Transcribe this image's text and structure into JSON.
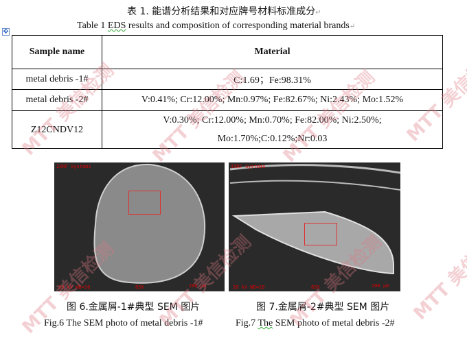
{
  "table_title_cn": "表 1. 能谱分析结果和对应牌号材料标准成分",
  "table_title_en_prefix": "Table 1 ",
  "table_title_en_eds": "EDS",
  "table_title_en_suffix": " results and composition of corresponding material brands",
  "table": {
    "headers": [
      "Sample name",
      "Material"
    ],
    "rows": [
      {
        "name": "metal debris -1#",
        "material": [
          "C:1.69；Fe:98.31%"
        ]
      },
      {
        "name": "metal debris -2#",
        "material": [
          "V:0.41%; Cr:12.00%; Mn:0.97%; Fe:82.67%; Ni:2.43%; Mo:1.52%"
        ]
      },
      {
        "name": "Z12CNDV12",
        "material": [
          "V:0.30%; Cr:12.00%; Mn:0.70%; Fe:82.00%; Ni:2.50%;",
          "Mo:1.70%;C:0.12%;Nr:0.03"
        ]
      }
    ]
  },
  "figures": [
    {
      "caption_cn": "图 6.金属屑-1#典型 SEM 图片",
      "caption_en": "Fig.6 The SEM photo of metal debris -1#",
      "overlay": {
        "system": "IXRF Systems",
        "kv": "20 kV  WD=10",
        "mag": "85X",
        "scale": "200 μm",
        "region": "1"
      }
    },
    {
      "caption_cn": "图 7.金属屑-2#典型 SEM 图片",
      "caption_en_prefix": "Fig.7 ",
      "caption_en_the": "The",
      "caption_en_suffix": " SEM photo of metal debris -2#",
      "overlay": {
        "system": "IXRF Systems",
        "kv": "20 kV  WD=10",
        "mag": "85X",
        "scale": "200 μm",
        "region": "1"
      }
    }
  ],
  "watermark": "MTT 美信检测",
  "paragraph_mark": "↵",
  "colors": {
    "overlay_red": "#e03030",
    "watermark": "#dc7882"
  }
}
